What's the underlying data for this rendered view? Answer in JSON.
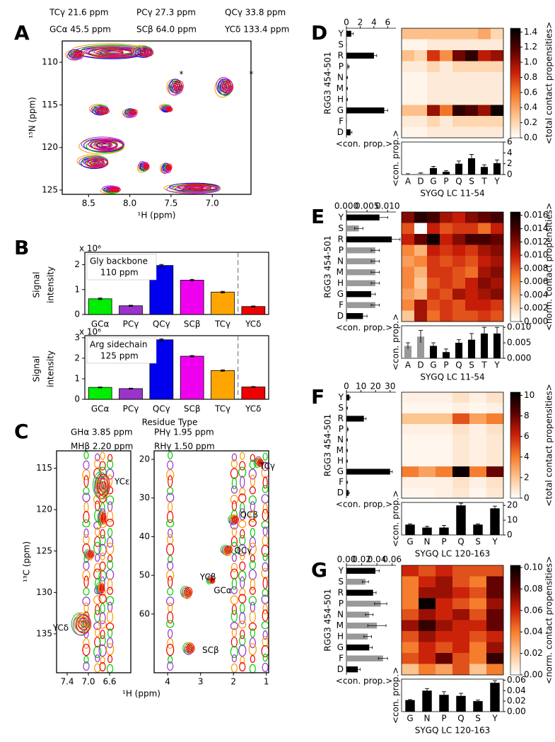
{
  "chart_data": [
    {
      "type": "contour",
      "panel": "A",
      "legend": [
        {
          "name": "TCγ 21.6 ppm",
          "color": "#ff9900"
        },
        {
          "name": "PCγ 27.3 ppm",
          "color": "#9933cc"
        },
        {
          "name": "QCγ 33.8 ppm",
          "color": "#0000ee"
        },
        {
          "name": "GCα 45.5 ppm",
          "color": "#00cc00"
        },
        {
          "name": "SCβ 64.0 ppm",
          "color": "#ee00ee"
        },
        {
          "name": "YCδ 133.4 ppm",
          "color": "#ee0000"
        }
      ],
      "xlabel": "¹H (ppm)",
      "ylabel": "¹⁵N (ppm)",
      "xlim": [
        8.82,
        6.53
      ],
      "xticks": [
        {
          "value": 8.5,
          "label": "8.5"
        },
        {
          "value": 8.0,
          "label": "8.0"
        },
        {
          "value": 7.5,
          "label": "7.5"
        },
        {
          "value": 7.0,
          "label": "7.0"
        }
      ],
      "ylim": [
        107.5,
        125.5
      ],
      "yticks": [
        110,
        115,
        120,
        125
      ],
      "annotations": [
        "*",
        "*"
      ]
    },
    {
      "type": "bar",
      "panel": "B",
      "ylabel": [
        "Signal",
        "intensity"
      ],
      "scale": "x 10⁶",
      "annotation": [
        "Gly backbone",
        "110 ppm"
      ],
      "categories": [
        "GCα",
        "PCγ",
        "QCγ",
        "SCβ",
        "TCγ",
        "YCδ"
      ],
      "colors": [
        "#00ee00",
        "#9933cc",
        "#0000ee",
        "#ee00ee",
        "#ffa500",
        "#ee0000"
      ],
      "values": [
        0.63,
        0.35,
        1.97,
        1.38,
        0.9,
        0.32
      ],
      "errors": [
        0.03,
        0.02,
        0.04,
        0.03,
        0.03,
        0.02
      ],
      "ylim": [
        0,
        2.5
      ],
      "yticks": [
        0,
        1,
        2
      ]
    },
    {
      "type": "bar",
      "ylabel": [
        "Signal",
        "intensity"
      ],
      "scale": "x 10⁶",
      "xlabel": "Residue Type",
      "annotation": [
        "Arg sidechain",
        "125 ppm"
      ],
      "categories": [
        "GCα",
        "PCγ",
        "QCγ",
        "SCβ",
        "TCγ",
        "YCδ"
      ],
      "colors": [
        "#00ee00",
        "#9933cc",
        "#0000ee",
        "#ee00ee",
        "#ffa500",
        "#ee0000"
      ],
      "values": [
        0.58,
        0.52,
        2.9,
        2.1,
        1.4,
        0.6
      ],
      "errors": [
        0.02,
        0.02,
        0.04,
        0.03,
        0.03,
        0.02
      ],
      "ylim": [
        0,
        3.1
      ],
      "yticks": [
        0,
        1,
        2,
        3
      ]
    },
    {
      "type": "contour",
      "panel": "C",
      "legend": [
        {
          "name": "GHα 3.85 ppm",
          "color": "#00cc00"
        },
        {
          "name": "PHγ 1.95 ppm",
          "color": "#9933cc"
        },
        {
          "name": "MHβ 2.20 ppm",
          "color": "#ff9900"
        },
        {
          "name": "RHγ 1.50 ppm",
          "color": "#ee0000"
        }
      ],
      "ylabel": "¹³C (ppm)",
      "xlim": [
        7.6,
        6.2
      ],
      "xticks": [
        7.4,
        {
          "value": 7.0,
          "label": "7.0"
        },
        6.6
      ],
      "ylim": [
        112.9,
        139.7
      ],
      "yticks": [
        115,
        120,
        125,
        130,
        135
      ],
      "annotations": [
        "YCε",
        "YCδ"
      ]
    },
    {
      "type": "contour",
      "xlabel": "¹H (ppm)",
      "legend": [
        {
          "color": "#00cc00"
        },
        {
          "color": "#9933cc"
        },
        {
          "color": "#ff9900"
        },
        {
          "color": "#ee0000"
        }
      ],
      "xlim": [
        4.41,
        0.93
      ],
      "xticks": [
        4,
        3,
        2,
        1
      ],
      "ylim": [
        17.8,
        75.2
      ],
      "yticks": [
        20,
        30,
        40,
        50,
        60
      ],
      "annotations": [
        "TCγ",
        "QCβ",
        "QCγ",
        "YCβ",
        "GCα",
        "SCβ"
      ]
    },
    {
      "type": "heatmap",
      "panel": "D",
      "ylabel": "RGG3 454-501",
      "xlabel": "SYGQ LC 11-54",
      "colormap": [
        "#ffffff",
        "#fdc38d",
        "#f57a2a",
        "#c81e08",
        "#5a0000",
        "#000000"
      ],
      "rows": [
        "Y",
        "S",
        "R",
        "P",
        "N",
        "M",
        "H",
        "G",
        "F",
        "D"
      ],
      "row_colors": [
        "#000000",
        "#999999",
        "#000000",
        "#999999",
        "#999999",
        "#999999",
        "#999999",
        "#000000",
        "#999999",
        "#000000"
      ],
      "columns": [
        "A",
        "D",
        "G",
        "P",
        "Q",
        "S",
        "T",
        "Y"
      ],
      "column_colors": [
        "#999999",
        "#999999",
        "#000000",
        "#000000",
        "#000000",
        "#000000",
        "#000000",
        "#000000"
      ],
      "matrix": [
        [
          0.3,
          0.3,
          0.3,
          0.3,
          0.3,
          0.3,
          0.4,
          0.2
        ],
        [
          0.05,
          0.05,
          0.1,
          0.1,
          0.1,
          0.1,
          0.1,
          0.1
        ],
        [
          0.3,
          0.2,
          0.8,
          0.5,
          1.1,
          1.3,
          0.9,
          1.0
        ],
        [
          0.1,
          0.1,
          0.2,
          0.1,
          0.2,
          0.2,
          0.2,
          0.2
        ],
        [
          0.05,
          0.05,
          0.1,
          0.1,
          0.1,
          0.1,
          0.1,
          0.1
        ],
        [
          0.05,
          0.05,
          0.1,
          0.1,
          0.1,
          0.1,
          0.1,
          0.1
        ],
        [
          0.05,
          0.05,
          0.1,
          0.1,
          0.1,
          0.1,
          0.1,
          0.1
        ],
        [
          0.3,
          0.3,
          1.0,
          0.6,
          1.3,
          1.2,
          1.0,
          1.4
        ],
        [
          0.1,
          0.1,
          0.2,
          0.1,
          0.2,
          0.2,
          0.2,
          0.2
        ],
        [
          0.05,
          0.05,
          0.1,
          0.1,
          0.1,
          0.1,
          0.1,
          0.1
        ]
      ],
      "clim": [
        0,
        1.45
      ],
      "cticks": [
        {
          "value": 0,
          "label": "0.0"
        },
        0.2,
        0.4,
        0.6,
        0.8,
        {
          "value": 1,
          "label": "1.0"
        },
        1.2,
        1.4
      ],
      "clabel": "<total contact propensities>",
      "side": {
        "values": [
          0.7,
          0,
          4,
          0.3,
          0.1,
          0.1,
          0.1,
          5.5,
          0,
          0.6
        ],
        "errors": [
          0.3,
          0,
          0.4,
          0.1,
          0.05,
          0.05,
          0.05,
          0.5,
          0,
          0.2
        ],
        "xlim": [
          0,
          7.2
        ],
        "xticks": [
          0,
          2,
          4,
          6
        ],
        "xlabel": "<con. prop.>"
      },
      "bottom": {
        "values": [
          0.1,
          0.2,
          1.2,
          0.5,
          2.0,
          3.0,
          1.4,
          2.1
        ],
        "errors": [
          0.05,
          0.1,
          0.3,
          0.2,
          0.5,
          0.7,
          0.4,
          0.6
        ],
        "ylim": [
          0,
          6
        ],
        "yticks": [
          0,
          2,
          4,
          6
        ],
        "ylabel": "<con. prop.>"
      }
    },
    {
      "type": "heatmap",
      "panel": "E",
      "ylabel": "RGG3 454-501",
      "xlabel": "SYGQ LC 11-54",
      "colormap": [
        "#ffffff",
        "#fdc38d",
        "#f57a2a",
        "#c81e08",
        "#5a0000",
        "#000000"
      ],
      "rows": [
        "Y",
        "S",
        "R",
        "P",
        "N",
        "M",
        "H",
        "G",
        "F",
        "D"
      ],
      "row_colors": [
        "#000000",
        "#999999",
        "#000000",
        "#999999",
        "#999999",
        "#999999",
        "#999999",
        "#000000",
        "#999999",
        "#000000"
      ],
      "columns": [
        "A",
        "D",
        "G",
        "P",
        "Q",
        "S",
        "T",
        "Y"
      ],
      "column_colors": [
        "#999999",
        "#999999",
        "#000000",
        "#000000",
        "#000000",
        "#000000",
        "#000000",
        "#000000"
      ],
      "matrix": [
        [
          0.012,
          0.015,
          0.014,
          0.011,
          0.01,
          0.012,
          0.013,
          0.014
        ],
        [
          0.008,
          0.0,
          0.01,
          0.008,
          0.009,
          0.009,
          0.007,
          0.01
        ],
        [
          0.01,
          0.013,
          0.016,
          0.01,
          0.012,
          0.014,
          0.014,
          0.013
        ],
        [
          0.006,
          0.004,
          0.01,
          0.009,
          0.01,
          0.009,
          0.011,
          0.012
        ],
        [
          0.005,
          0.006,
          0.009,
          0.008,
          0.009,
          0.008,
          0.01,
          0.011
        ],
        [
          0.006,
          0.004,
          0.009,
          0.009,
          0.008,
          0.007,
          0.011,
          0.012
        ],
        [
          0.006,
          0.003,
          0.008,
          0.009,
          0.008,
          0.01,
          0.012,
          0.011
        ],
        [
          0.005,
          0.004,
          0.009,
          0.008,
          0.011,
          0.01,
          0.011,
          0.012
        ],
        [
          0.006,
          0.011,
          0.008,
          0.009,
          0.008,
          0.01,
          0.01,
          0.009
        ],
        [
          0.003,
          0.011,
          0.007,
          0.009,
          0.008,
          0.008,
          0.009,
          0.008
        ]
      ],
      "clim": [
        0,
        0.0165
      ],
      "cticks": [
        {
          "value": 0,
          "label": "0.000"
        },
        0.002,
        0.004,
        0.006,
        0.008,
        {
          "value": 0.01,
          "label": "0.010"
        },
        0.012,
        0.014,
        0.016
      ],
      "clabel": "<norm. contact propensities>",
      "side": {
        "values": [
          0.008,
          0.003,
          0.011,
          0.007,
          0.007,
          0.007,
          0.007,
          0.006,
          0.007,
          0.004
        ],
        "errors": [
          0.002,
          0.001,
          0.002,
          0.001,
          0.001,
          0.001,
          0.001,
          0.001,
          0.001,
          0.001
        ],
        "xlim": [
          0,
          0.012
        ],
        "xticks": [
          {
            "value": 0,
            "label": "0.000"
          },
          {
            "value": 0.005,
            "label": "0.005"
          },
          {
            "value": 0.01,
            "label": "0.010"
          }
        ],
        "xlabel": "<con. prop.>"
      },
      "bottom": {
        "values": [
          0.004,
          0.007,
          0.004,
          0.002,
          0.005,
          0.006,
          0.008,
          0.008
        ],
        "errors": [
          0.001,
          0.002,
          0.001,
          0.001,
          0.001,
          0.002,
          0.002,
          0.002
        ],
        "ylim": [
          0,
          0.0105
        ],
        "yticks": [
          {
            "value": 0,
            "label": "0.000"
          },
          {
            "value": 0.005,
            "label": "0.005"
          },
          {
            "value": 0.01,
            "label": "0.010"
          }
        ],
        "ylabel": "<con. prop.>"
      }
    },
    {
      "type": "heatmap",
      "panel": "F",
      "ylabel": "RGG3 454-501",
      "xlabel": "SYGQ LC 120-163",
      "colormap": [
        "#ffffff",
        "#fdc38d",
        "#f57a2a",
        "#c81e08",
        "#5a0000",
        "#000000"
      ],
      "rows": [
        "Y",
        "S",
        "R",
        "P",
        "N",
        "M",
        "H",
        "G",
        "F",
        "D"
      ],
      "row_colors": [
        "#000000",
        "#999999",
        "#000000",
        "#999999",
        "#999999",
        "#999999",
        "#999999",
        "#000000",
        "#999999",
        "#000000"
      ],
      "columns": [
        "G",
        "N",
        "P",
        "Q",
        "S",
        "Y"
      ],
      "column_colors": [
        "#000000",
        "#000000",
        "#000000",
        "#000000",
        "#000000",
        "#000000"
      ],
      "matrix": [
        [
          0.5,
          0.5,
          0.5,
          1,
          0.5,
          1
        ],
        [
          0.3,
          0.3,
          0.3,
          0.5,
          0.3,
          0.5
        ],
        [
          2,
          2,
          2,
          5,
          3,
          4
        ],
        [
          0.5,
          0.5,
          0.5,
          1,
          0.5,
          1
        ],
        [
          0.3,
          0.3,
          0.3,
          0.8,
          0.5,
          0.8
        ],
        [
          0.3,
          0.3,
          0.3,
          0.8,
          0.5,
          0.8
        ],
        [
          0.3,
          0.3,
          0.3,
          0.8,
          0.5,
          0.8
        ],
        [
          4,
          3,
          4,
          10,
          4,
          8
        ],
        [
          0.5,
          0.5,
          0.5,
          1,
          0.5,
          1
        ],
        [
          0.3,
          0.3,
          0.5,
          0.8,
          0.3,
          0.8
        ]
      ],
      "clim": [
        0,
        10.3
      ],
      "cticks": [
        0,
        2,
        4,
        6,
        8,
        10
      ],
      "clabel": "<total contact propensities>",
      "side": {
        "values": [
          2,
          0.5,
          12,
          1,
          0.5,
          0.5,
          0.5,
          30,
          0.5,
          1.5
        ],
        "errors": [
          0.5,
          0.2,
          1.5,
          0.3,
          0.2,
          0.2,
          0.2,
          1.5,
          0.2,
          0.5
        ],
        "xlim": [
          0,
          34
        ],
        "xticks": [
          0,
          10,
          20,
          30
        ],
        "xlabel": "<con. prop.>"
      },
      "bottom": {
        "values": [
          7,
          5,
          5,
          20,
          7,
          18
        ],
        "errors": [
          0.5,
          0.8,
          1.5,
          1.5,
          0.5,
          1.5
        ],
        "ylim": [
          0,
          22
        ],
        "yticks": [
          0,
          10,
          20
        ],
        "ylabel": "<con. prop.>"
      }
    },
    {
      "type": "heatmap",
      "panel": "G",
      "ylabel": "RGG3 454-501",
      "xlabel": "SYGQ LC 120-163",
      "colormap": [
        "#ffffff",
        "#fdc38d",
        "#f57a2a",
        "#c81e08",
        "#5a0000",
        "#000000"
      ],
      "rows": [
        "Y",
        "S",
        "R",
        "P",
        "N",
        "M",
        "H",
        "G",
        "F",
        "D"
      ],
      "row_colors": [
        "#000000",
        "#999999",
        "#000000",
        "#999999",
        "#999999",
        "#999999",
        "#999999",
        "#000000",
        "#999999",
        "#000000"
      ],
      "columns": [
        "G",
        "N",
        "P",
        "Q",
        "S",
        "Y"
      ],
      "column_colors": [
        "#000000",
        "#000000",
        "#000000",
        "#000000",
        "#000000",
        "#000000"
      ],
      "matrix": [
        [
          0.06,
          0.05,
          0.06,
          0.05,
          0.05,
          0.05
        ],
        [
          0.04,
          0.06,
          0.07,
          0.05,
          0.04,
          0.08
        ],
        [
          0.04,
          0.07,
          0.07,
          0.06,
          0.05,
          0.08
        ],
        [
          0.04,
          0.1,
          0.06,
          0.05,
          0.04,
          0.07
        ],
        [
          0.05,
          0.07,
          0.06,
          0.07,
          0.05,
          0.08
        ],
        [
          0.07,
          0.09,
          0.07,
          0.06,
          0.06,
          0.08
        ],
        [
          0.05,
          0.07,
          0.06,
          0.06,
          0.05,
          0.06
        ],
        [
          0.04,
          0.06,
          0.05,
          0.06,
          0.04,
          0.07
        ],
        [
          0.05,
          0.06,
          0.08,
          0.05,
          0.04,
          0.09
        ],
        [
          0.02,
          0.04,
          0.03,
          0.05,
          0.02,
          0.04
        ]
      ],
      "clim": [
        0,
        0.102
      ],
      "cticks": [
        {
          "value": 0,
          "label": "0.00"
        },
        0.02,
        0.04,
        0.06,
        0.08,
        {
          "value": 0.1,
          "label": "0.10"
        }
      ],
      "clabel": "<norm. contact propensities>",
      "side": {
        "values": [
          0.038,
          0.025,
          0.035,
          0.045,
          0.03,
          0.04,
          0.028,
          0.03,
          0.048,
          0.015
        ],
        "errors": [
          0.005,
          0.004,
          0.004,
          0.008,
          0.005,
          0.012,
          0.005,
          0.004,
          0.006,
          0.003
        ],
        "xlim": [
          0,
          0.065
        ],
        "xticks": [
          {
            "value": 0,
            "label": "0.00"
          },
          0.02,
          0.04,
          0.06
        ],
        "xlabel": "<con. prop.>"
      },
      "bottom": {
        "values": [
          0.022,
          0.04,
          0.032,
          0.03,
          0.02,
          0.055
        ],
        "errors": [
          0.001,
          0.004,
          0.006,
          0.005,
          0.002,
          0.004
        ],
        "ylim": [
          0,
          0.062
        ],
        "yticks": [
          {
            "value": 0,
            "label": "0.00"
          },
          0.02,
          0.04,
          0.06
        ],
        "ylabel": "<con. prop.>"
      }
    }
  ]
}
